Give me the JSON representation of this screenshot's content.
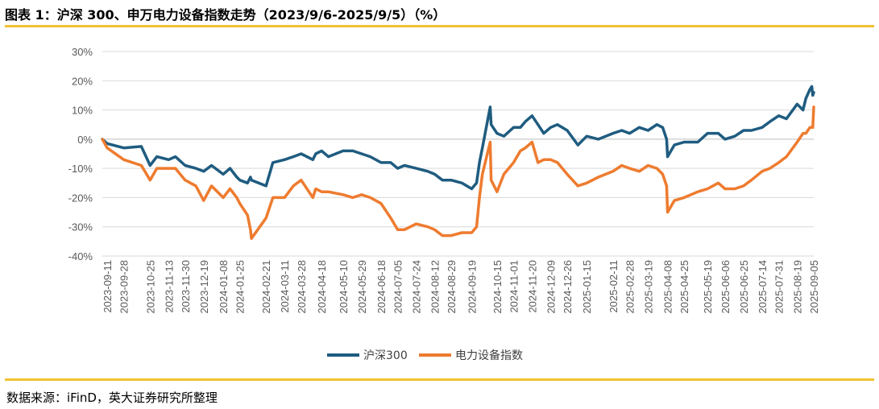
{
  "header": {
    "title": "图表 1：沪深 300、申万电力设备指数走势（2023/9/6-2025/9/5）（%）"
  },
  "footer": {
    "source": "数据来源：iFinD，英大证券研究所整理"
  },
  "colors": {
    "accent_rule": "#f2c233",
    "series_hs300": "#1f5c80",
    "series_power": "#ee7b2f",
    "grid": "#d9d9d9",
    "axis_text": "#595959"
  },
  "chart_data": {
    "type": "line",
    "title": "",
    "xlabel": "",
    "ylabel": "",
    "ylim": [
      -40,
      30
    ],
    "y_ticks": [
      30,
      20,
      10,
      0,
      -10,
      -20,
      -30,
      -40
    ],
    "y_tick_labels": [
      "30%",
      "20%",
      "10%",
      "0%",
      "-10%",
      "-20%",
      "-30%",
      "-40%"
    ],
    "grid": true,
    "legend": "bottom-center",
    "x_ticks": [
      "2023-09-11",
      "2023-09-28",
      "2023-10-25",
      "2023-11-13",
      "2023-11-30",
      "2023-12-19",
      "2024-01-08",
      "2024-01-25",
      "2024-02-21",
      "2024-03-11",
      "2024-03-28",
      "2024-04-18",
      "2024-05-10",
      "2024-05-29",
      "2024-06-18",
      "2024-07-05",
      "2024-07-24",
      "2024-08-12",
      "2024-08-29",
      "2024-09-19",
      "2024-10-15",
      "2024-11-01",
      "2024-11-20",
      "2024-12-09",
      "2024-12-26",
      "2025-01-15",
      "2025-02-11",
      "2025-02-28",
      "2025-03-19",
      "2025-04-08",
      "2025-04-25",
      "2025-05-19",
      "2025-06-06",
      "2025-06-25",
      "2025-07-14",
      "2025-07-31",
      "2025-08-19",
      "2025-09-05"
    ],
    "x": [
      "2023-09-06",
      "2023-09-11",
      "2023-09-28",
      "2023-10-16",
      "2023-10-25",
      "2023-11-01",
      "2023-11-13",
      "2023-11-20",
      "2023-11-30",
      "2023-12-11",
      "2023-12-19",
      "2023-12-27",
      "2024-01-08",
      "2024-01-15",
      "2024-01-22",
      "2024-01-25",
      "2024-02-02",
      "2024-02-05",
      "2024-02-06",
      "2024-02-21",
      "2024-02-28",
      "2024-03-11",
      "2024-03-20",
      "2024-03-28",
      "2024-04-09",
      "2024-04-12",
      "2024-04-18",
      "2024-04-25",
      "2024-05-10",
      "2024-05-20",
      "2024-05-29",
      "2024-06-07",
      "2024-06-18",
      "2024-06-28",
      "2024-07-05",
      "2024-07-12",
      "2024-07-24",
      "2024-08-05",
      "2024-08-12",
      "2024-08-20",
      "2024-08-29",
      "2024-09-09",
      "2024-09-19",
      "2024-09-24",
      "2024-09-27",
      "2024-09-30",
      "2024-10-08",
      "2024-10-09",
      "2024-10-15",
      "2024-10-22",
      "2024-11-01",
      "2024-11-08",
      "2024-11-13",
      "2024-11-20",
      "2024-11-26",
      "2024-12-02",
      "2024-12-09",
      "2024-12-16",
      "2024-12-26",
      "2025-01-06",
      "2025-01-15",
      "2025-01-27",
      "2025-02-11",
      "2025-02-20",
      "2025-02-28",
      "2025-03-10",
      "2025-03-19",
      "2025-03-28",
      "2025-04-03",
      "2025-04-07",
      "2025-04-08",
      "2025-04-15",
      "2025-04-25",
      "2025-05-09",
      "2025-05-19",
      "2025-05-30",
      "2025-06-06",
      "2025-06-16",
      "2025-06-25",
      "2025-07-03",
      "2025-07-14",
      "2025-07-22",
      "2025-07-31",
      "2025-08-08",
      "2025-08-19",
      "2025-08-25",
      "2025-08-28",
      "2025-09-01",
      "2025-09-03",
      "2025-09-04",
      "2025-09-05"
    ],
    "series": [
      {
        "name": "沪深300",
        "color": "#1f5c80",
        "values": [
          0,
          -1.5,
          -3,
          -2.5,
          -9,
          -6,
          -7,
          -6,
          -9,
          -10,
          -11,
          -9,
          -12,
          -10,
          -13,
          -14,
          -15,
          -13,
          -14,
          -16,
          -8,
          -7,
          -6,
          -5,
          -7,
          -5,
          -4,
          -6,
          -4,
          -4,
          -5,
          -6,
          -8,
          -8,
          -10,
          -9,
          -10,
          -11,
          -12,
          -14,
          -14,
          -15,
          -17,
          -15,
          -8,
          -3,
          11,
          5,
          2,
          1,
          4,
          4,
          6,
          8,
          5,
          2,
          4,
          5,
          3,
          -2,
          1,
          0,
          2,
          3,
          2,
          4,
          3,
          5,
          4,
          0,
          -6,
          -2,
          -1,
          -1,
          2,
          2,
          0,
          1,
          3,
          3,
          4,
          6,
          8,
          7,
          12,
          10,
          14,
          17,
          18,
          15,
          16
        ]
      },
      {
        "name": "电力设备指数",
        "color": "#ee7b2f",
        "values": [
          0,
          -3,
          -7,
          -9,
          -14,
          -10,
          -10,
          -10,
          -14,
          -16,
          -21,
          -16,
          -20,
          -17,
          -20,
          -22,
          -26,
          -31,
          -34,
          -27,
          -20,
          -20,
          -16,
          -14,
          -20,
          -17,
          -18,
          -18,
          -19,
          -20,
          -19,
          -20,
          -22,
          -27,
          -31,
          -31,
          -29,
          -30,
          -31,
          -33,
          -33,
          -32,
          -32,
          -30,
          -20,
          -12,
          -1,
          -14,
          -18,
          -12,
          -8,
          -4,
          -3,
          -1,
          -8,
          -7,
          -7,
          -8,
          -12,
          -16,
          -15,
          -13,
          -11,
          -9,
          -10,
          -11,
          -9,
          -10,
          -12,
          -16,
          -25,
          -21,
          -20,
          -18,
          -17,
          -15,
          -17,
          -17,
          -16,
          -14,
          -11,
          -10,
          -8,
          -6,
          -1,
          2,
          2,
          4,
          4,
          4,
          11
        ]
      }
    ]
  }
}
